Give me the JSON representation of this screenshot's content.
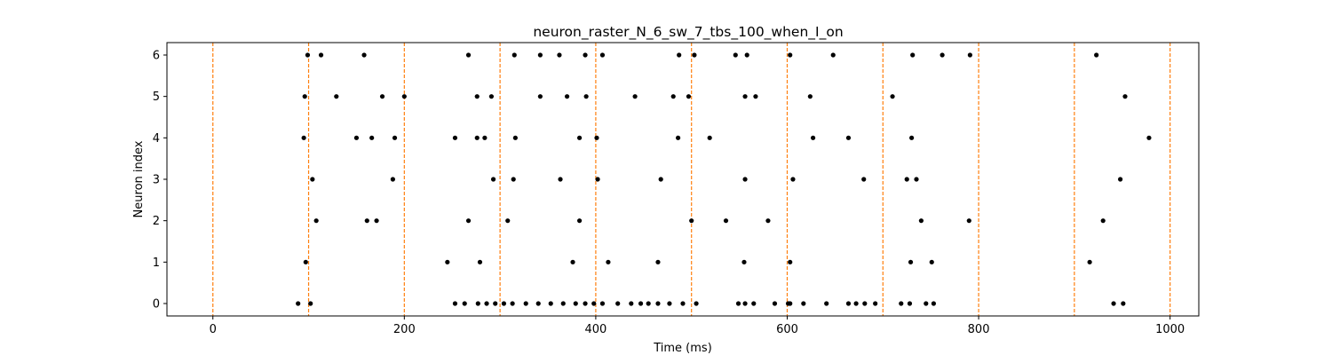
{
  "chart_data": {
    "type": "scatter",
    "title": "neuron_raster_N_6_sw_7_tbs_100_when_I_on",
    "xlabel": "Time (ms)",
    "ylabel": "Neuron index",
    "xlim": [
      -48,
      1030
    ],
    "ylim": [
      -0.3,
      6.3
    ],
    "x_ticks": [
      0,
      200,
      400,
      600,
      800,
      1000
    ],
    "y_ticks": [
      0,
      1,
      2,
      3,
      4,
      5,
      6
    ],
    "grid": false,
    "legend": "none",
    "marker_color": "#000000",
    "vline_color": "#ff7f0e",
    "vlines": [
      0,
      100,
      200,
      300,
      400,
      500,
      600,
      700,
      800,
      900,
      1000
    ],
    "series": [
      {
        "neuron": 6,
        "x": [
          99,
          113,
          158,
          267,
          315,
          342,
          362,
          389,
          407,
          487,
          503,
          546,
          558,
          603,
          648,
          731,
          762,
          791,
          923
        ]
      },
      {
        "neuron": 5,
        "x": [
          96,
          129,
          177,
          200,
          276,
          291,
          342,
          370,
          390,
          441,
          481,
          497,
          556,
          567,
          624,
          710,
          953
        ]
      },
      {
        "neuron": 4,
        "x": [
          95,
          150,
          166,
          190,
          253,
          276,
          284,
          316,
          383,
          401,
          486,
          519,
          627,
          664,
          730,
          978
        ]
      },
      {
        "neuron": 3,
        "x": [
          104,
          188,
          293,
          314,
          363,
          402,
          468,
          556,
          606,
          680,
          725,
          735,
          948
        ]
      },
      {
        "neuron": 2,
        "x": [
          108,
          161,
          171,
          267,
          308,
          383,
          500,
          536,
          580,
          740,
          790,
          930
        ]
      },
      {
        "neuron": 1,
        "x": [
          97,
          245,
          279,
          376,
          413,
          465,
          555,
          603,
          729,
          751,
          916
        ]
      },
      {
        "neuron": 0,
        "x": [
          89,
          102,
          253,
          263,
          277,
          286,
          295,
          304,
          313,
          327,
          340,
          353,
          366,
          379,
          389,
          398,
          407,
          423,
          437,
          447,
          455,
          465,
          477,
          491,
          505,
          549,
          556,
          565,
          587,
          601,
          603,
          617,
          641,
          664,
          672,
          681,
          692,
          719,
          728,
          745,
          753,
          941,
          951
        ]
      }
    ]
  }
}
